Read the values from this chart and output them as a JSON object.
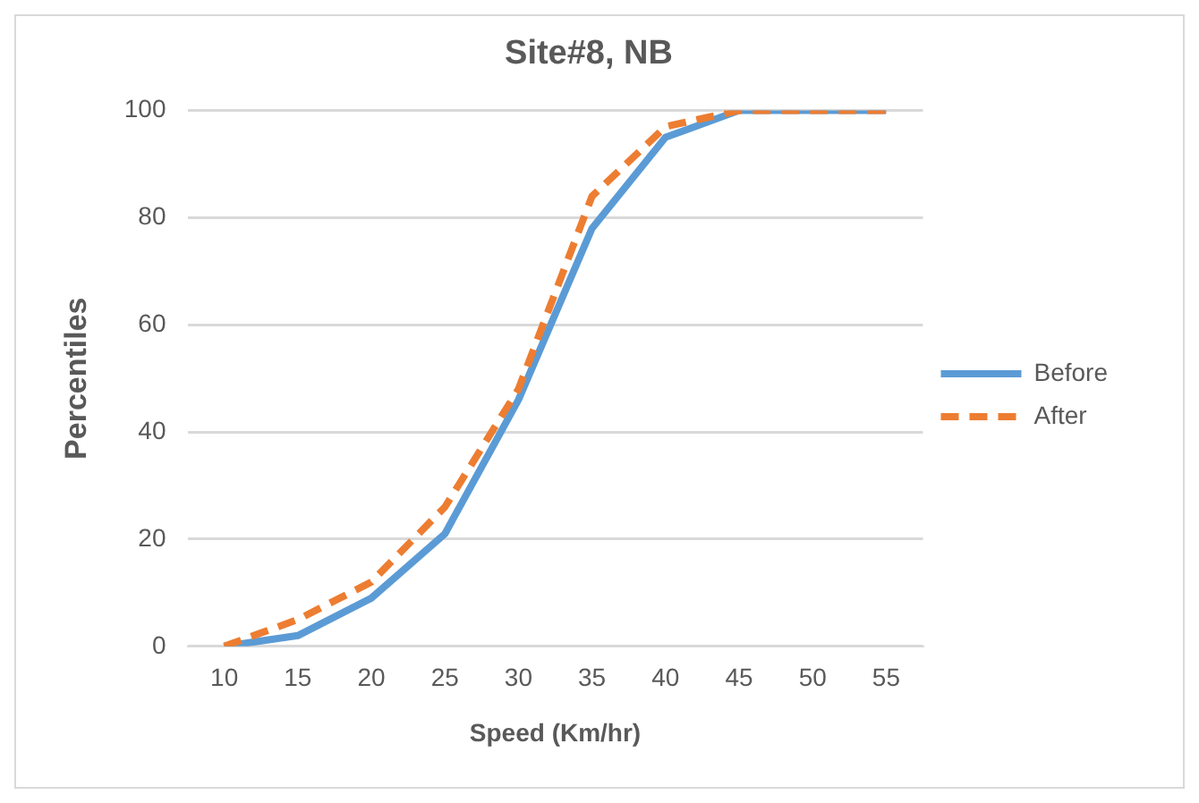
{
  "chart_data": {
    "type": "line",
    "title": "Site#8, NB",
    "xlabel": "Speed (Km/hr)",
    "ylabel": "Percentiles",
    "categories": [
      "10",
      "15",
      "20",
      "25",
      "30",
      "35",
      "40",
      "45",
      "50",
      "55"
    ],
    "series": [
      {
        "name": "Before",
        "color": "#5b9bd5",
        "line_style": "solid",
        "values": [
          0,
          2,
          9,
          21,
          46,
          78,
          95,
          100,
          100,
          100
        ]
      },
      {
        "name": "After",
        "color": "#ed7d31",
        "line_style": "dashed",
        "values": [
          0,
          5,
          12,
          26,
          48,
          84,
          97,
          100,
          100,
          100
        ]
      }
    ],
    "ylim": [
      0,
      100
    ],
    "yticks": [
      0,
      20,
      40,
      60,
      80,
      100
    ],
    "grid": "y",
    "legend": "right",
    "marker": "none"
  }
}
